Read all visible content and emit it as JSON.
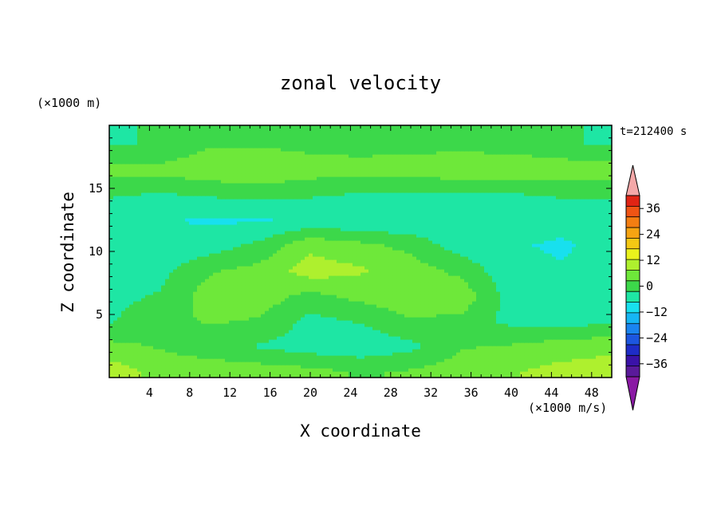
{
  "chart_data": {
    "type": "heatmap",
    "title": "zonal velocity",
    "xlabel": "X coordinate",
    "ylabel": "Z coordinate",
    "x_unit_label": "(×1000 m/s)",
    "y_unit_label": "(×1000 m)",
    "time_label": "t=212400 s",
    "xlim": [
      0,
      50
    ],
    "ylim": [
      0,
      20
    ],
    "x_ticks": [
      4,
      8,
      12,
      16,
      20,
      24,
      28,
      32,
      36,
      40,
      44,
      48
    ],
    "y_ticks": [
      5,
      10,
      15
    ],
    "colorbar": {
      "range": [
        -42,
        42
      ],
      "step": 6,
      "tick_values": [
        36,
        24,
        12,
        0,
        -12,
        -24,
        -36
      ],
      "tick_labels": [
        "36",
        "24",
        "12",
        "0",
        "−12",
        "−24",
        "−36"
      ],
      "colors": [
        "#5a1a9a",
        "#3a12a8",
        "#1e2cc8",
        "#1c56e0",
        "#1a84f0",
        "#16b6f4",
        "#18e0ee",
        "#1ee6a4",
        "#3cd84a",
        "#6ee83a",
        "#aef02e",
        "#eaf21c",
        "#f4c814",
        "#f6a412",
        "#f47e12",
        "#f05414",
        "#e02414"
      ],
      "under_color": "#8a1aa4",
      "over_color": "#f4a8a8"
    },
    "grid": false,
    "legend": "colorbar-right",
    "field": {
      "x": [
        0,
        5,
        10,
        15,
        20,
        25,
        30,
        35,
        40,
        45,
        50
      ],
      "z": [
        0.5,
        2.5,
        4.5,
        6.5,
        8.5,
        10.5,
        12.5,
        14.5,
        16.5,
        18.5
      ],
      "values": [
        [
          10,
          6,
          6,
          5,
          4,
          2,
          3,
          5,
          7,
          9,
          10
        ],
        [
          4,
          2,
          -1,
          -3,
          -5,
          -6,
          -4,
          2,
          3,
          5,
          6
        ],
        [
          -3,
          1,
          3,
          2,
          -4,
          -2,
          2,
          1,
          -4,
          -5,
          -3
        ],
        [
          -4,
          -2,
          5,
          5,
          1,
          4,
          6,
          6,
          -5,
          -6,
          -4
        ],
        [
          -5,
          -4,
          2,
          4,
          10,
          8,
          5,
          1,
          -6,
          -7,
          -5
        ],
        [
          -6,
          -7,
          -5,
          -1,
          6,
          4,
          1,
          -5,
          -7,
          -8,
          -6
        ],
        [
          -6,
          -7,
          -8,
          -8,
          -6,
          -7,
          -7,
          -7,
          -6,
          -6,
          -5
        ],
        [
          -2,
          -3,
          -2,
          -1,
          -2,
          -3,
          -3,
          -4,
          -3,
          -2,
          -2
        ],
        [
          4,
          4,
          6,
          7,
          5,
          4,
          5,
          6,
          7,
          6,
          5
        ],
        [
          -3,
          -2,
          2,
          2,
          1,
          1,
          1,
          1,
          0,
          -2,
          -3
        ]
      ]
    }
  }
}
